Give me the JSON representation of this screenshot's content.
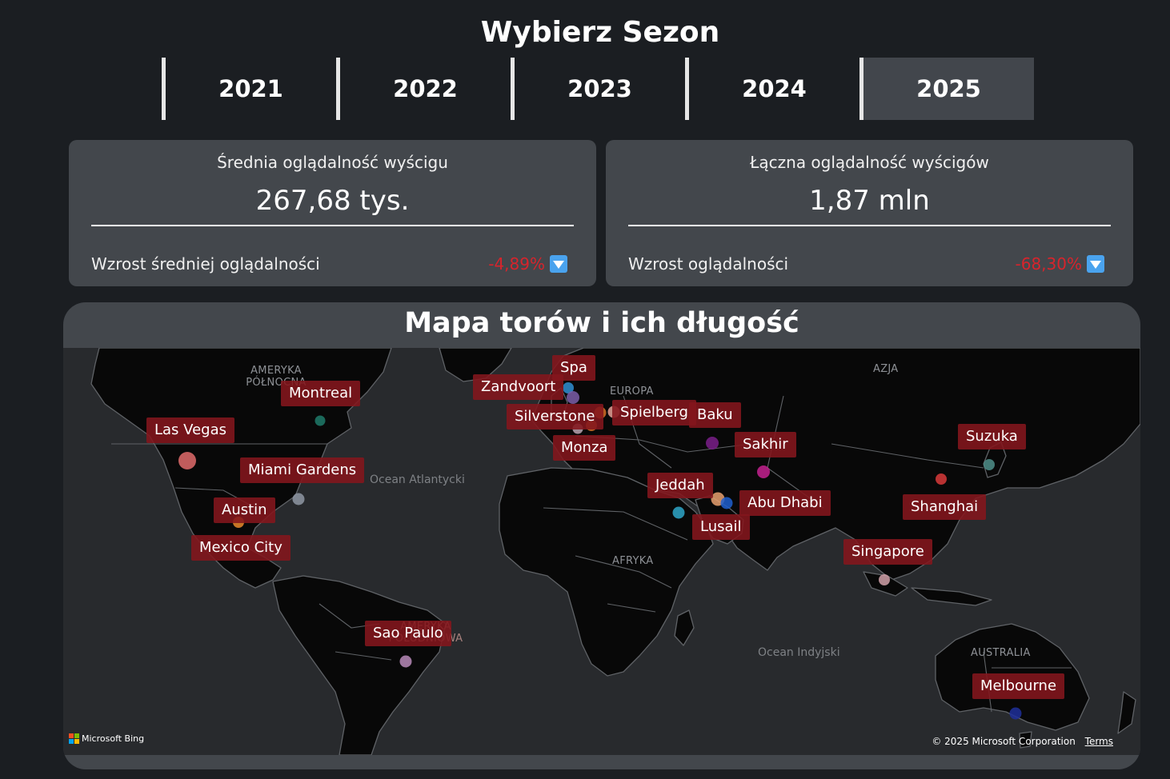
{
  "season": {
    "title": "Wybierz Sezon",
    "years": [
      "2021",
      "2022",
      "2023",
      "2024",
      "2025"
    ],
    "selected": "2025"
  },
  "kpi_left": {
    "title": "Średnia oglądalność wyścigu",
    "value": "267,68 tys.",
    "subtitle": "Wzrost średniej oglądalności",
    "delta": "-4,89%",
    "icon": "down-arrow-icon"
  },
  "kpi_right": {
    "title": "Łączna oglądalność wyścigów",
    "value": "1,87 mln",
    "subtitle": "Wzrost oglądalności",
    "delta": "-68,30%",
    "icon": "down-arrow-icon"
  },
  "map": {
    "title": "Mapa torów i ich długość",
    "regions": {
      "north_america": [
        "AMERYKA",
        "PÓŁNOCNA"
      ],
      "europe": "EUROPA",
      "asia": "AZJA",
      "africa": "AFRYKA",
      "south_america": [
        "AMERYKA",
        "POŁUDNIOWA"
      ],
      "australia": "AUSTRALIA"
    },
    "oceans": {
      "atlantic": "Ocean Atlantycki",
      "indian": "Ocean Indyjski"
    },
    "cities": {
      "montreal": "Montreal",
      "las_vegas": "Las Vegas",
      "miami": "Miami Gardens",
      "austin": "Austin",
      "mexico": "Mexico City",
      "sao_paulo": "Sao Paulo",
      "spa": "Spa",
      "zandvoort": "Zandvoort",
      "silverstone": "Silverstone",
      "spielberg": "Spielberg",
      "baku": "Baku",
      "monza": "Monza",
      "sakhir": "Sakhir",
      "jeddah": "Jeddah",
      "abu_dhabi": "Abu Dhabi",
      "lusail": "Lusail",
      "suzuka": "Suzuka",
      "shanghai": "Shanghai",
      "singapore": "Singapore",
      "melbourne": "Melbourne"
    },
    "bubble_colors": {
      "montreal": "#1e7a6a",
      "las_vegas": "#e06b6b",
      "miami": "#8e97a3",
      "austin": "#e8882b",
      "sao_paulo": "#b78ab8",
      "spa": "#2f8fd2",
      "zandvoort": "#7b5ea8",
      "silverstone": "#b9a3b0",
      "spielberg": "#e6a096",
      "monza": "#d46d26",
      "baku": "#7a1f8a",
      "sakhir": "#c4218f",
      "jeddah": "#2ea6c8",
      "abu_dhabi": "#e8a06e",
      "lusail": "#1f5fcf",
      "suzuka": "#4f8f8a",
      "shanghai": "#d83a3a",
      "singapore": "#d0a0a8",
      "melbourne": "#1f2f9a"
    },
    "attribution": {
      "logo": "Microsoft Bing",
      "copyright": "© 2025 Microsoft Corporation",
      "terms": "Terms"
    }
  }
}
